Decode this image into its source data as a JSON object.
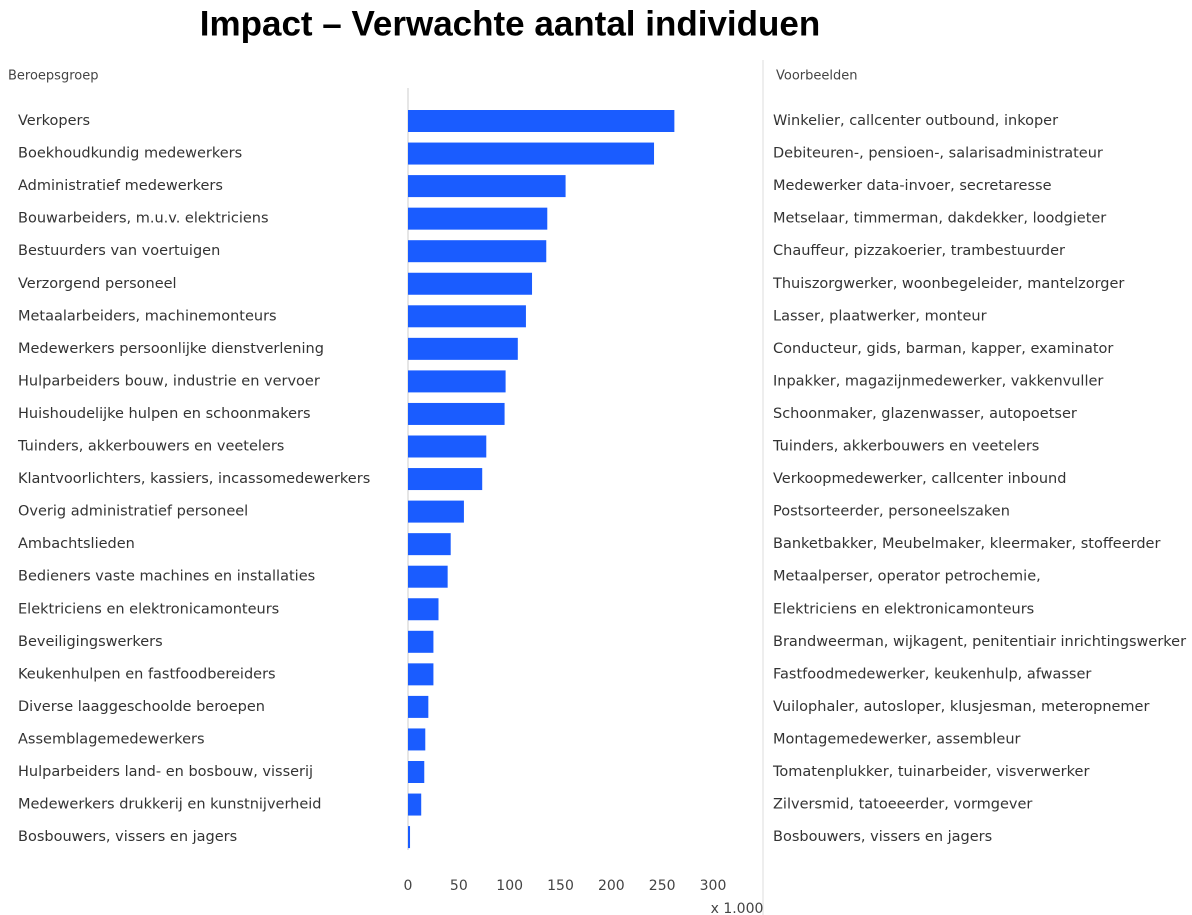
{
  "chart_data": {
    "type": "bar",
    "orientation": "horizontal",
    "title": "Impact – Verwachte aantal individuen",
    "category_header": "Beroepsgroep",
    "examples_header": "Voorbeelden",
    "categories": [
      "Verkopers",
      "Boekhoudkundig medewerkers",
      "Administratief medewerkers",
      "Bouwarbeiders, m.u.v. elektriciens",
      "Bestuurders van voertuigen",
      "Verzorgend personeel",
      "Metaalarbeiders, machinemonteurs",
      "Medewerkers persoonlijke dienstverlening",
      "Hulparbeiders bouw, industrie en vervoer",
      "Huishoudelijke hulpen en schoonmakers",
      "Tuinders, akkerbouwers en veetelers",
      "Klantvoorlichters, kassiers, incassomedewerkers",
      "Overig administratief personeel",
      "Ambachtslieden",
      "Bedieners vaste machines en installaties",
      "Elektriciens en elektronicamonteurs",
      "Beveiligingswerkers",
      "Keukenhulpen en fastfoodbereiders",
      "Diverse laaggeschoolde beroepen",
      "Assemblagemedewerkers",
      "Hulparbeiders land- en bosbouw, visserij",
      "Medewerkers drukkerij en kunstnijverheid",
      "Bosbouwers, vissers en jagers"
    ],
    "values": [
      262,
      242,
      155,
      137,
      136,
      122,
      116,
      108,
      96,
      95,
      77,
      73,
      55,
      42,
      39,
      30,
      25,
      25,
      20,
      17,
      16,
      13,
      2
    ],
    "examples": [
      "Winkelier, callcenter outbound, inkoper",
      "Debiteuren-, pensioen-, salarisadministrateur",
      "Medewerker data-invoer,  secretaresse",
      "Metselaar, timmerman, dakdekker, loodgieter",
      "Chauffeur, pizzakoerier, trambestuurder",
      "Thuiszorgwerker, woonbegeleider, mantelzorger",
      "Lasser, plaatwerker, monteur",
      "Conducteur, gids, barman, kapper, examinator",
      "Inpakker, magazijnmedewerker, vakkenvuller",
      "Schoonmaker, glazenwasser, autopoetser",
      "Tuinders, akkerbouwers en veetelers",
      "Verkoopmedewerker, callcenter inbound",
      "Postsorteerder, personeelszaken",
      "Banketbakker, Meubelmaker, kleermaker, stoffeerder",
      "Metaalperser, operator petrochemie,",
      "Elektriciens en elektronicamonteurs",
      "Brandweerman, wijkagent, penitentiair inrichtingswerker",
      "Fastfoodmedewerker, keukenhulp, afwasser",
      "Vuilophaler, autosloper, klusjesman, meteropnemer",
      "Montagemedewerker, assembleur",
      "Tomatenplukker, tuinarbeider, visverwerker",
      "Zilversmid, tatoeeerder, vormgever",
      "Bosbouwers, vissers en jagers"
    ],
    "color": "#1a5cff",
    "xlim": [
      0,
      300
    ],
    "xticks": [
      0,
      50,
      100,
      150,
      200,
      250,
      300
    ],
    "x_unit_label": "x 1.000"
  }
}
